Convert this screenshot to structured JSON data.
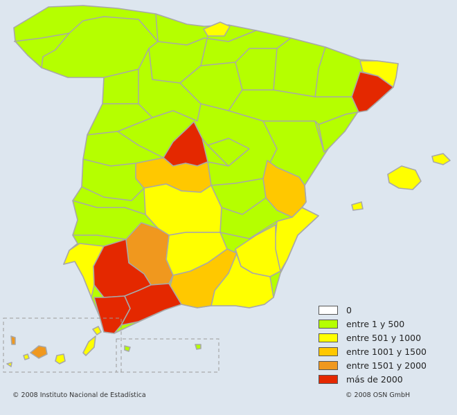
{
  "legend": {
    "items": [
      {
        "label": "0",
        "color": "#ffffff"
      },
      {
        "label": "entre 1 y 500",
        "color": "#b5ff00"
      },
      {
        "label": "entre 501 y 1000",
        "color": "#ffff00"
      },
      {
        "label": "entre 1001 y 1500",
        "color": "#ffc800"
      },
      {
        "label": "entre 1501 y 2000",
        "color": "#f0981e"
      },
      {
        "label": "más de 2000",
        "color": "#e42800"
      }
    ]
  },
  "credits": {
    "left": "© 2008 Instituto Nacional de Estadística",
    "right": "© 2008 OSN GmbH"
  }
}
